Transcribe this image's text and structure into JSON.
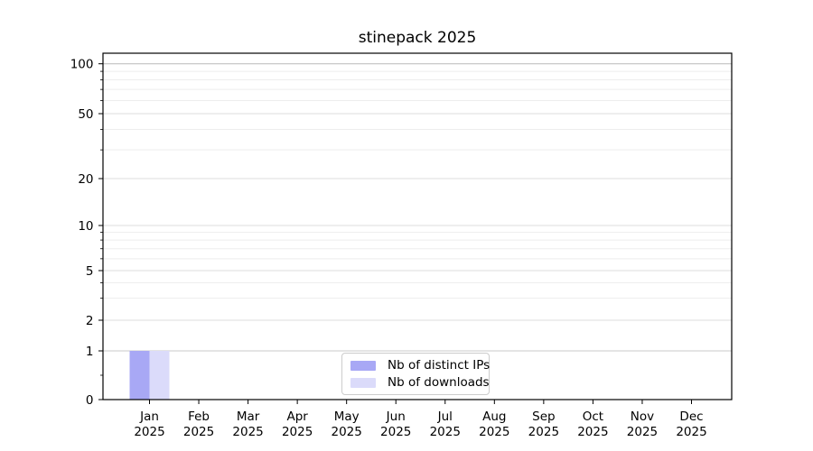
{
  "chart_data": {
    "type": "bar",
    "title": "stinepack 2025",
    "categories": [
      "Jan",
      "Feb",
      "Mar",
      "Apr",
      "May",
      "Jun",
      "Jul",
      "Aug",
      "Sep",
      "Oct",
      "Nov",
      "Dec"
    ],
    "x_tick_year": "2025",
    "series": [
      {
        "name": "Nb of distinct IPs",
        "color": "#a8a8f5",
        "values": [
          1,
          0,
          0,
          0,
          0,
          0,
          0,
          0,
          0,
          0,
          0,
          0
        ]
      },
      {
        "name": "Nb of downloads",
        "color": "#dbdbfa",
        "values": [
          1,
          0,
          0,
          0,
          0,
          0,
          0,
          0,
          0,
          0,
          0,
          0
        ]
      }
    ],
    "yticks": [
      0,
      1,
      2,
      5,
      10,
      20,
      50,
      100
    ],
    "y_minor_ticks": [
      0.5,
      3,
      4,
      6,
      7,
      8,
      9,
      30,
      40,
      60,
      70,
      80,
      90
    ],
    "ylim": [
      0,
      115
    ],
    "xlabel": "",
    "ylabel": "",
    "scale": "symlog",
    "grid": true,
    "legend_position": "lower center"
  },
  "legend": {
    "items": [
      {
        "label": "Nb of distinct IPs",
        "color": "#a8a8f5"
      },
      {
        "label": "Nb of downloads",
        "color": "#dbdbfa"
      }
    ]
  }
}
